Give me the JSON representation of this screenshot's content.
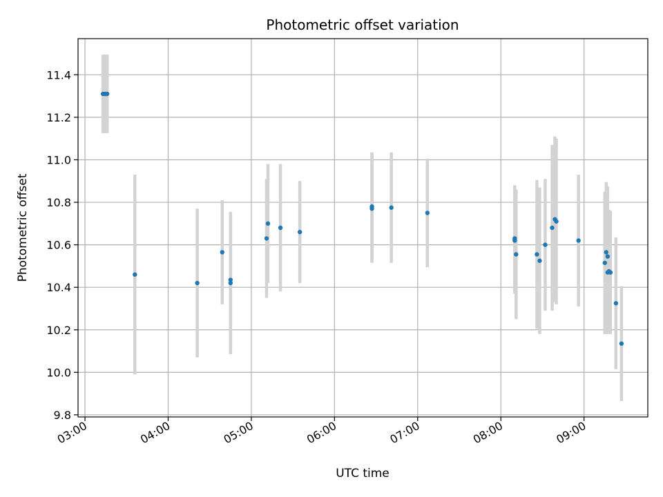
{
  "chart_data": {
    "type": "scatter",
    "title": "Photometric offset variation",
    "xlabel": "UTC time",
    "ylabel": "Photometric offset",
    "x_unit": "time-of-day",
    "xlim": [
      "02:55",
      "09:46"
    ],
    "ylim": [
      9.79,
      11.57
    ],
    "x_ticks": [
      "03:00",
      "04:00",
      "05:00",
      "06:00",
      "07:00",
      "08:00",
      "09:00"
    ],
    "y_ticks": [
      9.8,
      10.0,
      10.2,
      10.4,
      10.6,
      10.8,
      11.0,
      11.2,
      11.4
    ],
    "grid": true,
    "colors": {
      "points": "#1f77b4",
      "errorbars": "#d3d3d3"
    },
    "points": [
      {
        "x": "03:13",
        "y": 11.31,
        "err": 0.185
      },
      {
        "x": "03:14",
        "y": 11.31,
        "err": 0.185
      },
      {
        "x": "03:15",
        "y": 11.31,
        "err": 0.185
      },
      {
        "x": "03:15",
        "y": 11.31,
        "err": 0.185
      },
      {
        "x": "03:16",
        "y": 11.31,
        "err": 0.185
      },
      {
        "x": "03:36",
        "y": 10.46,
        "err": 0.47
      },
      {
        "x": "04:21",
        "y": 10.42,
        "err": 0.35
      },
      {
        "x": "04:39",
        "y": 10.565,
        "err": 0.245
      },
      {
        "x": "04:45",
        "y": 10.435,
        "err": 0.32
      },
      {
        "x": "04:45",
        "y": 10.42,
        "err": 0.335
      },
      {
        "x": "05:11",
        "y": 10.63,
        "err": 0.28
      },
      {
        "x": "05:12",
        "y": 10.7,
        "err": 0.28
      },
      {
        "x": "05:21",
        "y": 10.68,
        "err": 0.3
      },
      {
        "x": "05:35",
        "y": 10.66,
        "err": 0.24
      },
      {
        "x": "06:27",
        "y": 10.78,
        "err": 0.255
      },
      {
        "x": "06:27",
        "y": 10.77,
        "err": 0.255
      },
      {
        "x": "06:41",
        "y": 10.775,
        "err": 0.26
      },
      {
        "x": "07:07",
        "y": 10.75,
        "err": 0.255
      },
      {
        "x": "08:10",
        "y": 10.63,
        "err": 0.25
      },
      {
        "x": "08:10",
        "y": 10.62,
        "err": 0.25
      },
      {
        "x": "08:11",
        "y": 10.555,
        "err": 0.305
      },
      {
        "x": "08:26",
        "y": 10.555,
        "err": 0.35
      },
      {
        "x": "08:28",
        "y": 10.525,
        "err": 0.345
      },
      {
        "x": "08:32",
        "y": 10.6,
        "err": 0.31
      },
      {
        "x": "08:37",
        "y": 10.68,
        "err": 0.39
      },
      {
        "x": "08:39",
        "y": 10.72,
        "err": 0.39
      },
      {
        "x": "08:40",
        "y": 10.71,
        "err": 0.39
      },
      {
        "x": "08:56",
        "y": 10.62,
        "err": 0.31
      },
      {
        "x": "09:15",
        "y": 10.515,
        "err": 0.335
      },
      {
        "x": "09:16",
        "y": 10.565,
        "err": 0.33
      },
      {
        "x": "09:17",
        "y": 10.545,
        "err": 0.33
      },
      {
        "x": "09:17",
        "y": 10.47,
        "err": 0.29
      },
      {
        "x": "09:18",
        "y": 10.475,
        "err": 0.29
      },
      {
        "x": "09:19",
        "y": 10.47,
        "err": 0.29
      },
      {
        "x": "09:23",
        "y": 10.325,
        "err": 0.31
      },
      {
        "x": "09:27",
        "y": 10.135,
        "err": 0.27
      }
    ]
  }
}
